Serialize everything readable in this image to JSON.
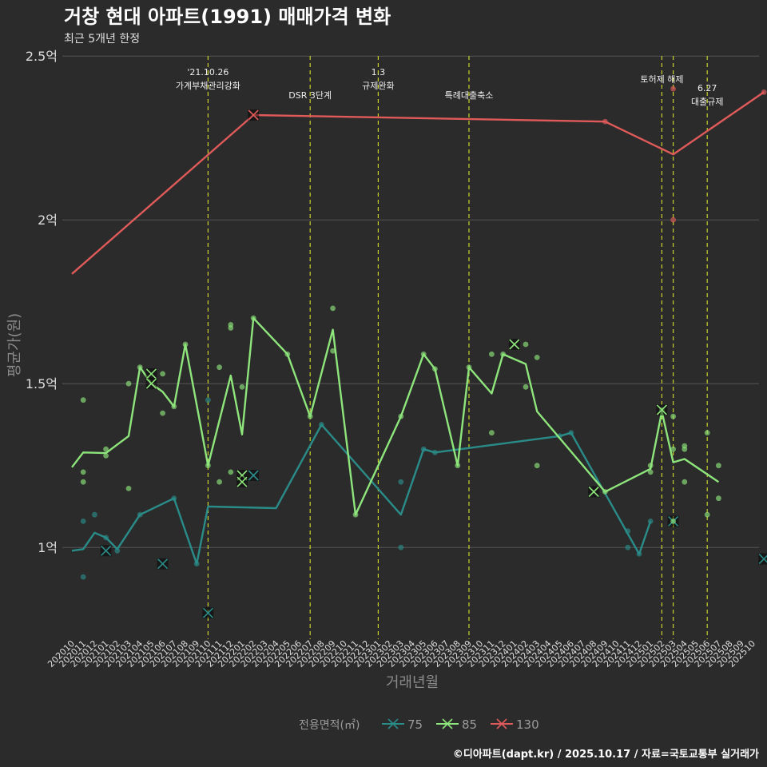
{
  "title": "거창 현대 아파트(1991) 매매가격 변화",
  "subtitle": "최근 5개년 한정",
  "footer": "©디아파트(dapt.kr) / 2025.10.17 / 자료=국토교통부 실거래가",
  "colors": {
    "background": "#2b2b2b",
    "grid": "#555555",
    "s75": "#2a8c89",
    "s85": "#8ee57b",
    "s130": "#e05a5a",
    "vline": "#c8d22a"
  },
  "chart_data": {
    "type": "line",
    "xlabel": "거래년월",
    "ylabel": "평균가(원)",
    "ylim": [
      0.72,
      2.52
    ],
    "yticks": [
      1,
      1.5,
      2,
      2.5
    ],
    "ytick_labels": [
      "1억",
      "1.5억",
      "2억",
      "2.5억"
    ],
    "categories": [
      "202010",
      "202011",
      "202012",
      "202101",
      "202102",
      "202103",
      "202104",
      "202105",
      "202106",
      "202107",
      "202108",
      "202109",
      "202110",
      "202111",
      "202112",
      "202201",
      "202202",
      "202203",
      "202204",
      "202205",
      "202206",
      "202207",
      "202208",
      "202209",
      "202210",
      "202211",
      "202212",
      "202301",
      "202302",
      "202303",
      "202304",
      "202305",
      "202306",
      "202307",
      "202308",
      "202309",
      "202310",
      "202311",
      "202312",
      "202401",
      "202402",
      "202403",
      "202404",
      "202405",
      "202406",
      "202407",
      "202408",
      "202409",
      "202410",
      "202411",
      "202412",
      "202501",
      "202502",
      "202503",
      "202504",
      "202505",
      "202506",
      "202507",
      "202508",
      "202509",
      "202510"
    ],
    "legend_title": "전용면적(㎡)",
    "series": [
      {
        "name": "75",
        "line": [
          [
            0,
            0.99
          ],
          [
            1,
            0.995
          ],
          [
            2,
            1.045
          ],
          [
            3,
            1.03
          ],
          [
            4,
            0.995
          ],
          [
            6,
            1.1
          ],
          [
            9,
            1.15
          ],
          [
            11,
            0.95
          ],
          [
            12,
            1.125
          ],
          [
            18,
            1.12
          ],
          [
            22,
            1.375
          ],
          [
            29,
            1.1
          ],
          [
            31,
            1.3
          ],
          [
            32,
            1.29
          ],
          [
            43,
            1.34
          ],
          [
            44,
            1.35
          ],
          [
            50,
            0.98
          ],
          [
            51,
            1.08
          ]
        ],
        "points": [
          [
            1,
            0.91
          ],
          [
            1,
            1.08
          ],
          [
            2,
            1.1
          ],
          [
            3,
            1.03
          ],
          [
            4,
            0.99
          ],
          [
            6,
            1.1
          ],
          [
            9,
            1.15
          ],
          [
            11,
            0.95
          ],
          [
            12,
            1.45
          ],
          [
            22,
            1.375
          ],
          [
            29,
            1.2
          ],
          [
            29,
            1.0
          ],
          [
            31,
            1.3
          ],
          [
            32,
            1.29
          ],
          [
            43,
            1.34
          ],
          [
            44,
            1.35
          ],
          [
            49,
            1.05
          ],
          [
            49,
            1.0
          ],
          [
            50,
            0.98
          ],
          [
            51,
            1.08
          ]
        ],
        "crosses": [
          [
            3,
            0.99
          ],
          [
            8,
            0.95
          ],
          [
            12,
            0.8
          ],
          [
            16,
            1.22
          ],
          [
            53,
            1.08
          ],
          [
            61,
            0.965
          ]
        ]
      },
      {
        "name": "85",
        "line": [
          [
            0,
            1.245
          ],
          [
            1,
            1.29
          ],
          [
            3,
            1.288
          ],
          [
            5,
            1.34
          ],
          [
            6,
            1.55
          ],
          [
            7,
            1.5
          ],
          [
            8,
            1.475
          ],
          [
            9,
            1.43
          ],
          [
            10,
            1.62
          ],
          [
            12,
            1.25
          ],
          [
            14,
            1.525
          ],
          [
            15,
            1.345
          ],
          [
            16,
            1.7
          ],
          [
            19,
            1.59
          ],
          [
            21,
            1.4
          ],
          [
            23,
            1.665
          ],
          [
            25,
            1.1
          ],
          [
            29,
            1.4
          ],
          [
            31,
            1.59
          ],
          [
            32,
            1.545
          ],
          [
            34,
            1.25
          ],
          [
            35,
            1.55
          ],
          [
            37,
            1.47
          ],
          [
            38,
            1.59
          ],
          [
            40,
            1.56
          ],
          [
            41,
            1.415
          ],
          [
            47,
            1.17
          ],
          [
            51,
            1.24
          ],
          [
            52,
            1.415
          ],
          [
            53,
            1.26
          ],
          [
            54,
            1.27
          ],
          [
            57,
            1.2
          ]
        ],
        "points": [
          [
            1,
            1.45
          ],
          [
            1,
            1.23
          ],
          [
            1,
            1.2
          ],
          [
            3,
            1.3
          ],
          [
            3,
            1.28
          ],
          [
            5,
            1.5
          ],
          [
            5,
            1.18
          ],
          [
            6,
            1.55
          ],
          [
            8,
            1.53
          ],
          [
            8,
            1.41
          ],
          [
            9,
            1.43
          ],
          [
            10,
            1.62
          ],
          [
            12,
            1.25
          ],
          [
            13,
            1.2
          ],
          [
            13,
            1.55
          ],
          [
            14,
            1.68
          ],
          [
            14,
            1.67
          ],
          [
            14,
            1.23
          ],
          [
            15,
            1.49
          ],
          [
            16,
            1.7
          ],
          [
            19,
            1.59
          ],
          [
            21,
            1.4
          ],
          [
            23,
            1.73
          ],
          [
            23,
            1.6
          ],
          [
            25,
            1.1
          ],
          [
            29,
            1.4
          ],
          [
            31,
            1.59
          ],
          [
            32,
            1.545
          ],
          [
            34,
            1.25
          ],
          [
            35,
            1.55
          ],
          [
            37,
            1.59
          ],
          [
            37,
            1.35
          ],
          [
            38,
            1.59
          ],
          [
            40,
            1.62
          ],
          [
            40,
            1.49
          ],
          [
            41,
            1.58
          ],
          [
            41,
            1.25
          ],
          [
            47,
            1.17
          ],
          [
            51,
            1.25
          ],
          [
            51,
            1.23
          ],
          [
            52,
            1.42
          ],
          [
            53,
            1.4
          ],
          [
            53,
            1.3
          ],
          [
            53,
            1.08
          ],
          [
            54,
            1.31
          ],
          [
            54,
            1.3
          ],
          [
            54,
            1.2
          ],
          [
            56,
            1.35
          ],
          [
            56,
            1.1
          ],
          [
            57,
            1.25
          ],
          [
            57,
            1.15
          ]
        ],
        "crosses": [
          [
            7,
            1.53
          ],
          [
            7,
            1.5
          ],
          [
            15,
            1.22
          ],
          [
            15,
            1.2
          ],
          [
            39,
            1.62
          ],
          [
            46,
            1.17
          ],
          [
            52,
            1.42
          ]
        ]
      },
      {
        "name": "130",
        "line": [
          [
            0,
            1.835
          ],
          [
            16,
            2.32
          ],
          [
            47,
            2.3
          ],
          [
            53,
            2.2
          ],
          [
            61,
            2.39
          ]
        ],
        "points": [
          [
            47,
            2.3
          ],
          [
            53,
            2.4
          ],
          [
            53,
            2.0
          ],
          [
            61,
            2.39
          ]
        ],
        "crosses": [
          [
            16,
            2.32
          ]
        ]
      }
    ],
    "events": [
      {
        "x": 12,
        "label_lines": [
          "'21.10.26",
          "가계부채관리강화"
        ]
      },
      {
        "x": 21,
        "label_lines": [
          "DSR 3단계"
        ]
      },
      {
        "x": 27,
        "label_lines": [
          "1.3",
          "규제완화"
        ]
      },
      {
        "x": 35,
        "label_lines": [
          "특례대출축소"
        ]
      },
      {
        "x": 52,
        "label_lines": [
          "토허제 해제"
        ]
      },
      {
        "x": 53,
        "label_lines": []
      },
      {
        "x": 56,
        "label_lines": [
          "6.27",
          "대출규제"
        ]
      }
    ]
  }
}
